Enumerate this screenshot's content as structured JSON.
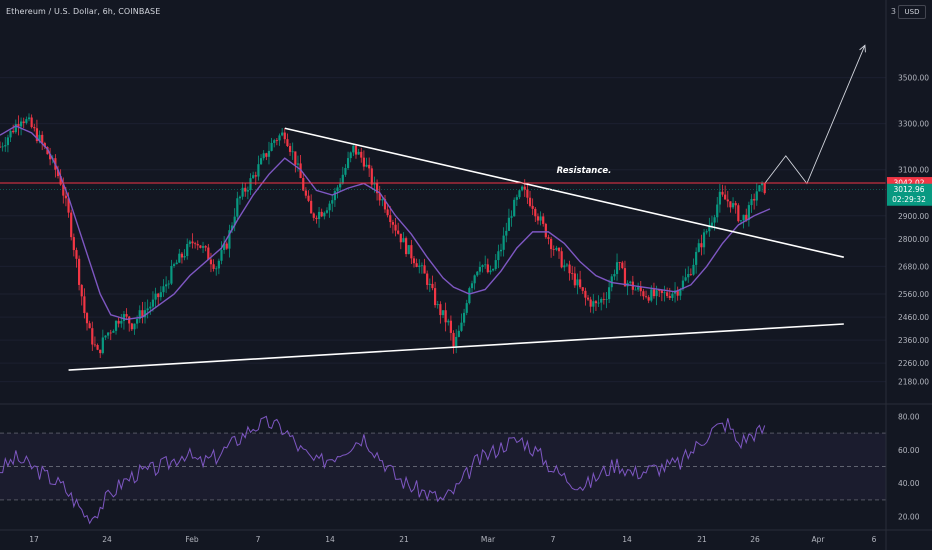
{
  "header": {
    "title": "Ethereum / U.S. Dollar, 6h, COINBASE"
  },
  "currency_button": {
    "label": "USD"
  },
  "top_right_label": "3",
  "chart_data": [
    {
      "type": "candlestick",
      "symbol": "Ethereum / U.S. Dollar",
      "interval": "6h",
      "exchange": "COINBASE",
      "y_ticks": [
        "3500.00",
        "3300.00",
        "3100.00",
        "2900.00",
        "2800.00",
        "2680.00",
        "2560.00",
        "2460.00",
        "2360.00",
        "2260.00",
        "2180.00"
      ],
      "x_ticks": [
        "17",
        "24",
        "Feb",
        "7",
        "14",
        "21",
        "Mar",
        "7",
        "14",
        "21",
        "26",
        "Apr",
        "6"
      ],
      "ylim": [
        2100,
        3750
      ],
      "resistance": {
        "price": 3042.02,
        "label": "Resistance.",
        "color": "#f23645"
      },
      "price_labels": [
        {
          "text": "3042.02",
          "color": "#f23645"
        },
        {
          "text": "3012.96",
          "color": "#089981",
          "sub": "02:29:32"
        }
      ],
      "series": [
        {
          "name": "",
          "kind": "price-path",
          "points": [
            [
              0,
              3200
            ],
            [
              4,
              3260
            ],
            [
              8,
              3330
            ],
            [
              11,
              3300
            ],
            [
              15,
              3230
            ],
            [
              19,
              3150
            ],
            [
              23,
              3050
            ],
            [
              26,
              2900
            ],
            [
              29,
              2700
            ],
            [
              32,
              2480
            ],
            [
              34,
              2390
            ],
            [
              37,
              2300
            ],
            [
              40,
              2380
            ],
            [
              43,
              2420
            ],
            [
              46,
              2470
            ],
            [
              50,
              2430
            ],
            [
              54,
              2480
            ],
            [
              58,
              2520
            ],
            [
              62,
              2580
            ],
            [
              66,
              2680
            ],
            [
              70,
              2740
            ],
            [
              74,
              2800
            ],
            [
              78,
              2740
            ],
            [
              82,
              2680
            ],
            [
              86,
              2780
            ],
            [
              90,
              2960
            ],
            [
              95,
              3050
            ],
            [
              100,
              3150
            ],
            [
              104,
              3230
            ],
            [
              108,
              3260
            ],
            [
              112,
              3140
            ],
            [
              115,
              3020
            ],
            [
              118,
              2900
            ],
            [
              122,
              2920
            ],
            [
              126,
              2970
            ],
            [
              130,
              3080
            ],
            [
              134,
              3190
            ],
            [
              138,
              3140
            ],
            [
              142,
              3020
            ],
            [
              146,
              2950
            ],
            [
              150,
              2850
            ],
            [
              154,
              2760
            ],
            [
              158,
              2700
            ],
            [
              162,
              2620
            ],
            [
              166,
              2500
            ],
            [
              170,
              2430
            ],
            [
              172,
              2330
            ],
            [
              175,
              2420
            ],
            [
              178,
              2600
            ],
            [
              182,
              2700
            ],
            [
              186,
              2640
            ],
            [
              190,
              2760
            ],
            [
              194,
              2920
            ],
            [
              198,
              3010
            ],
            [
              202,
              2950
            ],
            [
              206,
              2850
            ],
            [
              210,
              2760
            ],
            [
              214,
              2680
            ],
            [
              218,
              2620
            ],
            [
              222,
              2540
            ],
            [
              226,
              2510
            ],
            [
              230,
              2560
            ],
            [
              234,
              2700
            ],
            [
              237,
              2620
            ],
            [
              241,
              2580
            ],
            [
              245,
              2560
            ],
            [
              249,
              2550
            ],
            [
              253,
              2560
            ],
            [
              257,
              2580
            ],
            [
              261,
              2640
            ],
            [
              265,
              2760
            ],
            [
              269,
              2860
            ],
            [
              273,
              2980
            ],
            [
              277,
              2960
            ],
            [
              281,
              2880
            ],
            [
              284,
              2920
            ],
            [
              287,
              3010
            ],
            [
              290,
              3020
            ]
          ]
        },
        {
          "name": "",
          "kind": "moving-average",
          "color": "#7e57c2",
          "points": [
            [
              0,
              3250
            ],
            [
              6,
              3290
            ],
            [
              12,
              3260
            ],
            [
              18,
              3190
            ],
            [
              22,
              3100
            ],
            [
              26,
              2980
            ],
            [
              30,
              2840
            ],
            [
              34,
              2700
            ],
            [
              38,
              2560
            ],
            [
              42,
              2470
            ],
            [
              48,
              2450
            ],
            [
              54,
              2460
            ],
            [
              60,
              2510
            ],
            [
              66,
              2560
            ],
            [
              72,
              2640
            ],
            [
              78,
              2700
            ],
            [
              84,
              2760
            ],
            [
              90,
              2880
            ],
            [
              96,
              2990
            ],
            [
              102,
              3080
            ],
            [
              108,
              3150
            ],
            [
              114,
              3100
            ],
            [
              120,
              3010
            ],
            [
              126,
              2990
            ],
            [
              132,
              3020
            ],
            [
              138,
              3040
            ],
            [
              144,
              3000
            ],
            [
              150,
              2900
            ],
            [
              156,
              2820
            ],
            [
              162,
              2720
            ],
            [
              168,
              2630
            ],
            [
              172,
              2590
            ],
            [
              178,
              2560
            ],
            [
              184,
              2580
            ],
            [
              190,
              2660
            ],
            [
              196,
              2760
            ],
            [
              202,
              2830
            ],
            [
              208,
              2830
            ],
            [
              214,
              2780
            ],
            [
              220,
              2700
            ],
            [
              226,
              2640
            ],
            [
              232,
              2610
            ],
            [
              238,
              2600
            ],
            [
              244,
              2590
            ],
            [
              250,
              2580
            ],
            [
              256,
              2570
            ],
            [
              262,
              2600
            ],
            [
              268,
              2680
            ],
            [
              274,
              2780
            ],
            [
              280,
              2860
            ],
            [
              286,
              2900
            ],
            [
              292,
              2930
            ]
          ]
        }
      ],
      "trendlines": [
        {
          "name": "upper-trendline",
          "from": [
            108,
            3280
          ],
          "to": [
            320,
            2720
          ],
          "color": "#ffffff"
        },
        {
          "name": "lower-trendline",
          "from": [
            26,
            2230
          ],
          "to": [
            320,
            2430
          ],
          "color": "#ffffff"
        },
        {
          "name": "projection",
          "kind": "forecast-path",
          "color": "#d1d4dc",
          "points": [
            [
              290,
              3040
            ],
            [
              298,
              3160
            ],
            [
              306,
              3040
            ],
            [
              328,
              3640
            ]
          ]
        }
      ],
      "rsi": {
        "y_ticks": [
          "80.00",
          "60.00",
          "40.00",
          "20.00"
        ],
        "ylim": [
          15,
          85
        ],
        "overbought": 70,
        "oversold": 30,
        "mid": 50,
        "color": "#7e57c2",
        "points": [
          [
            0,
            48
          ],
          [
            6,
            55
          ],
          [
            12,
            50
          ],
          [
            18,
            44
          ],
          [
            24,
            38
          ],
          [
            30,
            26
          ],
          [
            34,
            18
          ],
          [
            40,
            30
          ],
          [
            46,
            40
          ],
          [
            52,
            46
          ],
          [
            58,
            48
          ],
          [
            64,
            52
          ],
          [
            70,
            58
          ],
          [
            76,
            52
          ],
          [
            82,
            56
          ],
          [
            90,
            66
          ],
          [
            96,
            74
          ],
          [
            102,
            76
          ],
          [
            108,
            72
          ],
          [
            114,
            60
          ],
          [
            120,
            52
          ],
          [
            126,
            56
          ],
          [
            132,
            62
          ],
          [
            138,
            68
          ],
          [
            144,
            56
          ],
          [
            150,
            44
          ],
          [
            156,
            38
          ],
          [
            162,
            34
          ],
          [
            168,
            30
          ],
          [
            174,
            38
          ],
          [
            180,
            52
          ],
          [
            186,
            58
          ],
          [
            192,
            64
          ],
          [
            198,
            66
          ],
          [
            204,
            58
          ],
          [
            210,
            48
          ],
          [
            216,
            42
          ],
          [
            222,
            38
          ],
          [
            228,
            46
          ],
          [
            234,
            52
          ],
          [
            240,
            46
          ],
          [
            246,
            48
          ],
          [
            252,
            50
          ],
          [
            258,
            52
          ],
          [
            264,
            62
          ],
          [
            270,
            72
          ],
          [
            276,
            76
          ],
          [
            280,
            64
          ],
          [
            286,
            70
          ],
          [
            290,
            72
          ]
        ]
      }
    }
  ]
}
